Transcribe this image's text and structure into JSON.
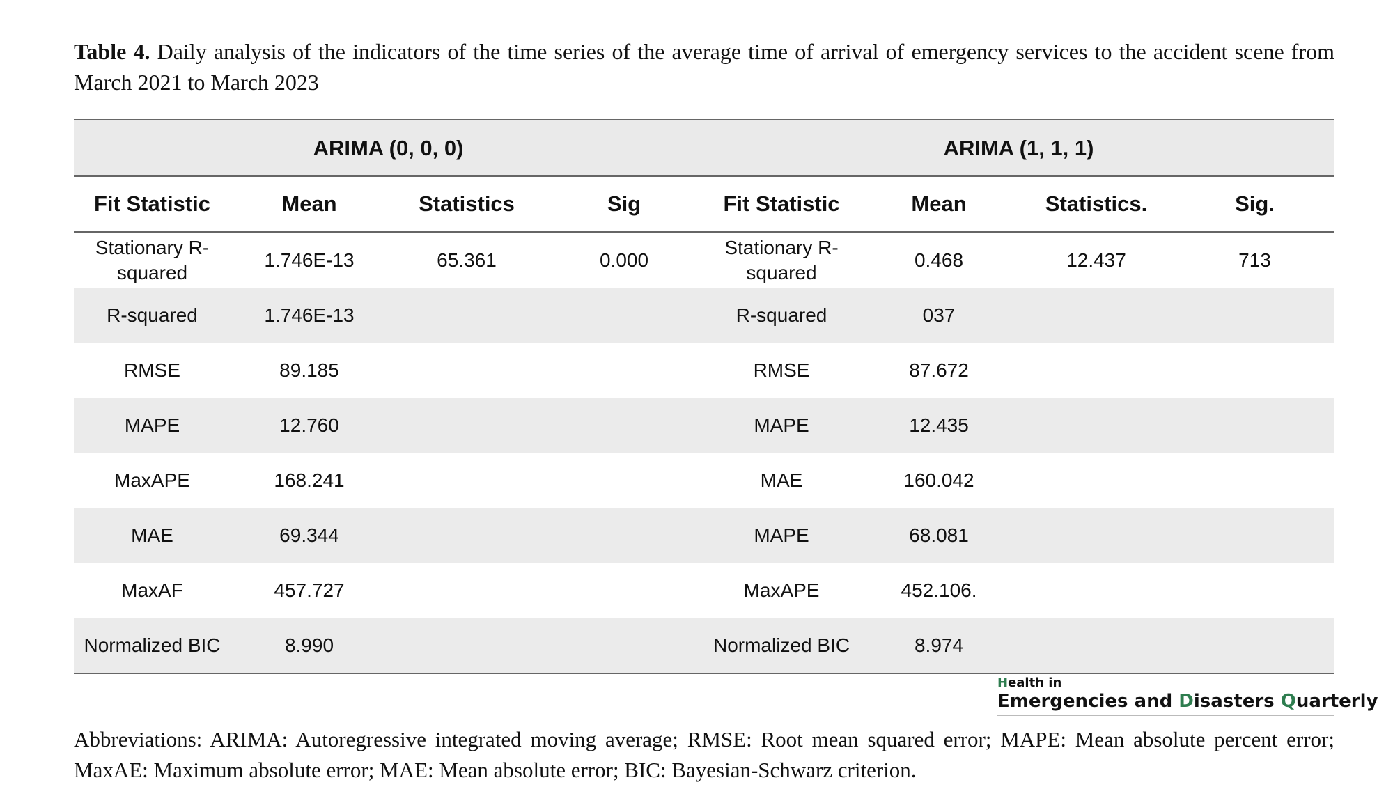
{
  "caption": {
    "label": "Table 4.",
    "text": " Daily analysis of the indicators of the time series of the average time of arrival of emergency services to the accident scene from March 2021 to March 2023"
  },
  "table": {
    "groups": [
      "ARIMA (0, 0, 0)",
      "ARIMA (1, 1, 1)"
    ],
    "headers": [
      "Fit Statistic",
      "Mean",
      "Statistics",
      "Sig",
      "Fit Statistic",
      "Mean",
      "Statistics.",
      "Sig."
    ],
    "rows": [
      [
        "Stationary R-squared",
        "1.746E-13",
        "65.361",
        "0.000",
        "Stationary R-squared",
        "0.468",
        "12.437",
        "713"
      ],
      [
        "R-squared",
        "1.746E-13",
        "",
        "",
        "R-squared",
        "037",
        "",
        ""
      ],
      [
        "RMSE",
        "89.185",
        "",
        "",
        "RMSE",
        "87.672",
        "",
        ""
      ],
      [
        "MAPE",
        "12.760",
        "",
        "",
        "MAPE",
        "12.435",
        "",
        ""
      ],
      [
        "MaxAPE",
        "168.241",
        "",
        "",
        "MAE",
        "160.042",
        "",
        ""
      ],
      [
        "MAE",
        "69.344",
        "",
        "",
        "MAPE",
        "68.081",
        "",
        ""
      ],
      [
        "MaxAF",
        "457.727",
        "",
        "",
        "MaxAPE",
        "452.106.",
        "",
        ""
      ],
      [
        "Normalized BIC",
        "8.990",
        "",
        "",
        "Normalized BIC",
        "8.974",
        "",
        ""
      ]
    ]
  },
  "journal_logo": {
    "line1_mark": "H",
    "line1_rest": "ealth in",
    "line2_word1": "Emergencies and ",
    "line2_mark2": "D",
    "line2_word2": "isasters ",
    "line2_mark3": "Q",
    "line2_word3": "uarterly"
  },
  "abbreviations": "Abbreviations: ARIMA: Autoregressive integrated moving average; RMSE: Root mean squared error; MAPE: Mean absolute percent error; MaxAE: Maximum absolute error; MAE: Mean absolute error; BIC: Bayesian-Schwarz criterion."
}
